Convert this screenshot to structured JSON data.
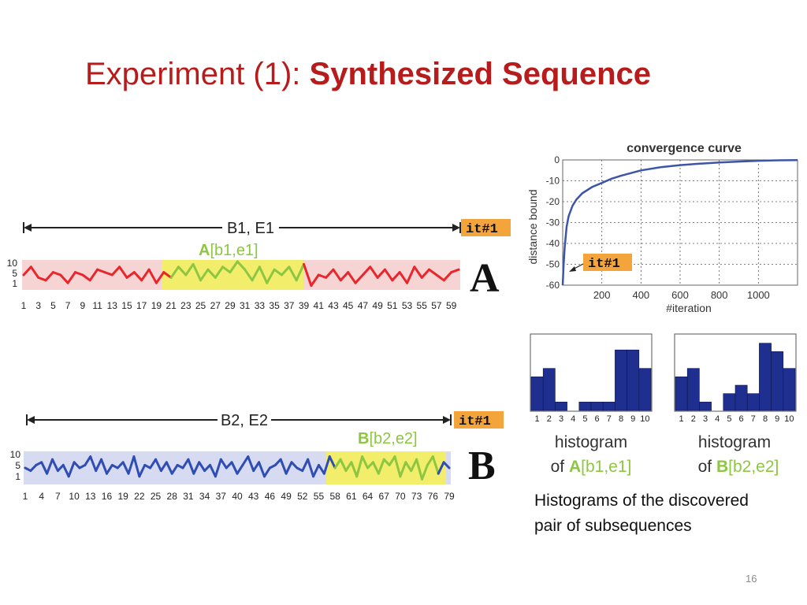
{
  "slide": {
    "title_prefix": "Experiment (1): ",
    "title_bold": "Synthesized Sequence",
    "caption_line1": "Histograms of the discovered",
    "caption_line2": "pair of subsequences",
    "page_number": "16"
  },
  "panel_a": {
    "letter": "A",
    "span_label": "B1, E1",
    "badge": "it#1",
    "highlight_label_letter": "A",
    "highlight_label_rest": "[b1,e1]",
    "y_ticks": [
      "10",
      "5",
      "1"
    ],
    "x_ticks": [
      "1",
      "3",
      "5",
      "7",
      "9",
      "11",
      "13",
      "15",
      "17",
      "19",
      "21",
      "23",
      "25",
      "27",
      "29",
      "31",
      "33",
      "35",
      "37",
      "39",
      "41",
      "43",
      "45",
      "47",
      "49",
      "51",
      "53",
      "55",
      "57",
      "59"
    ],
    "colors": {
      "line": "#e8262b",
      "band": "#f6d4d4",
      "highlight": "#f2ee6b",
      "highlight_line": "#8dc641"
    }
  },
  "panel_b": {
    "letter": "B",
    "span_label": "B2, E2",
    "badge": "it#1",
    "highlight_label_letter": "B",
    "highlight_label_rest": "[b2,e2]",
    "y_ticks": [
      "10",
      "5",
      "1"
    ],
    "x_ticks": [
      "1",
      "4",
      "7",
      "10",
      "13",
      "16",
      "19",
      "22",
      "25",
      "28",
      "31",
      "34",
      "37",
      "40",
      "43",
      "46",
      "49",
      "52",
      "55",
      "58",
      "61",
      "64",
      "67",
      "70",
      "73",
      "76",
      "79"
    ],
    "colors": {
      "line": "#2f4db3",
      "band": "#d7dbf2",
      "highlight": "#f2ee6b",
      "highlight_line": "#8dc641"
    }
  },
  "chart_data": [
    {
      "type": "line",
      "title": "convergence curve",
      "xlabel": "#iteration",
      "ylabel": "distance bound",
      "xlim": [
        0,
        1200
      ],
      "ylim": [
        -60,
        0
      ],
      "x_ticks": [
        200,
        400,
        600,
        800,
        1000
      ],
      "y_ticks": [
        0,
        -10,
        -20,
        -30,
        -40,
        -50,
        -60
      ],
      "grid": true,
      "annotation": "it#1",
      "series": [
        {
          "x": [
            0,
            5,
            10,
            20,
            30,
            50,
            70,
            100,
            150,
            200,
            250,
            300,
            400,
            500,
            600,
            700,
            800,
            900,
            1000,
            1100,
            1200
          ],
          "y": [
            -60,
            -50,
            -42,
            -32,
            -27,
            -22,
            -19,
            -16,
            -13,
            -11,
            -9,
            -7.5,
            -5,
            -3.5,
            -2.5,
            -1.8,
            -1.2,
            -0.8,
            -0.4,
            -0.2,
            -0.1
          ],
          "color": "#3d55a8"
        }
      ]
    },
    {
      "type": "bar",
      "title": "",
      "categories": [
        "1",
        "2",
        "3",
        "4",
        "5",
        "6",
        "7",
        "8",
        "9",
        "10"
      ],
      "values": [
        4,
        5,
        1,
        0,
        1,
        1,
        1,
        7.2,
        7.2,
        5
      ],
      "xlabel": "histogram of A[b1,e1]",
      "label_prefix": "of ",
      "label_letter": "A",
      "label_rest": "[b1,e1]",
      "label_top": "histogram",
      "ylim": [
        0,
        9
      ],
      "color": "#1f2f8f"
    },
    {
      "type": "bar",
      "title": "",
      "categories": [
        "1",
        "2",
        "3",
        "4",
        "5",
        "6",
        "7",
        "8",
        "9",
        "10"
      ],
      "values": [
        4,
        5,
        1,
        0,
        2,
        3,
        2,
        8,
        7,
        5
      ],
      "xlabel": "histogram of B[b2,e2]",
      "label_prefix": "of ",
      "label_letter": "B",
      "label_rest": "[b2,e2]",
      "label_top": "histogram",
      "ylim": [
        0,
        9
      ],
      "color": "#1f2f8f"
    },
    {
      "type": "line",
      "title": "",
      "name": "sequence A",
      "x": [
        1,
        2,
        3,
        4,
        5,
        6,
        7,
        8,
        9,
        10,
        11,
        12,
        13,
        14,
        15,
        16,
        17,
        18,
        19,
        20,
        21,
        22,
        23,
        24,
        25,
        26,
        27,
        28,
        29,
        30,
        31,
        32,
        33,
        34,
        35,
        36,
        37,
        38,
        39,
        40,
        41,
        42,
        43,
        44,
        45,
        46,
        47,
        48,
        49,
        50,
        51,
        52,
        53,
        54,
        55,
        56,
        57,
        58,
        59,
        60
      ],
      "values": [
        5,
        8,
        4,
        3,
        6,
        5,
        2,
        6,
        5,
        3,
        7,
        6,
        5,
        8,
        4,
        6,
        3,
        7,
        2,
        6,
        4,
        8,
        5,
        9,
        3,
        7,
        4,
        8,
        6,
        10,
        7,
        3,
        8,
        2,
        7,
        5,
        8,
        3,
        9,
        1,
        5,
        4,
        7,
        3,
        6,
        2,
        5,
        8,
        4,
        7,
        3,
        6,
        2,
        8,
        4,
        7,
        5,
        3,
        6,
        7
      ],
      "highlight": [
        21,
        39
      ],
      "ylim": [
        0,
        10
      ]
    },
    {
      "type": "line",
      "title": "",
      "name": "sequence B",
      "x": [
        1,
        2,
        3,
        4,
        5,
        6,
        7,
        8,
        9,
        10,
        11,
        12,
        13,
        14,
        15,
        16,
        17,
        18,
        19,
        20,
        21,
        22,
        23,
        24,
        25,
        26,
        27,
        28,
        29,
        30,
        31,
        32,
        33,
        34,
        35,
        36,
        37,
        38,
        39,
        40,
        41,
        42,
        43,
        44,
        45,
        46,
        47,
        48,
        49,
        50,
        51,
        52,
        53,
        54,
        55,
        56,
        57,
        58,
        59,
        60,
        61,
        62,
        63,
        64,
        65,
        66,
        67,
        68,
        69,
        70,
        71,
        72,
        73,
        74,
        75,
        76,
        77,
        78,
        79
      ],
      "values": [
        5,
        4,
        6,
        7,
        3,
        8,
        4,
        6,
        2,
        7,
        5,
        6,
        9,
        4,
        8,
        3,
        6,
        5,
        7,
        3,
        9,
        2,
        6,
        5,
        8,
        4,
        7,
        3,
        6,
        5,
        8,
        3,
        7,
        4,
        6,
        2,
        8,
        5,
        7,
        3,
        6,
        9,
        4,
        7,
        2,
        5,
        6,
        8,
        3,
        7,
        5,
        4,
        8,
        2,
        6,
        3,
        9,
        5,
        8,
        4,
        7,
        2,
        9,
        5,
        7,
        3,
        8,
        6,
        9,
        2,
        7,
        4,
        8,
        1,
        6,
        9,
        3,
        7,
        5
      ],
      "highlight": [
        58,
        77
      ],
      "ylim": [
        0,
        10
      ]
    }
  ]
}
